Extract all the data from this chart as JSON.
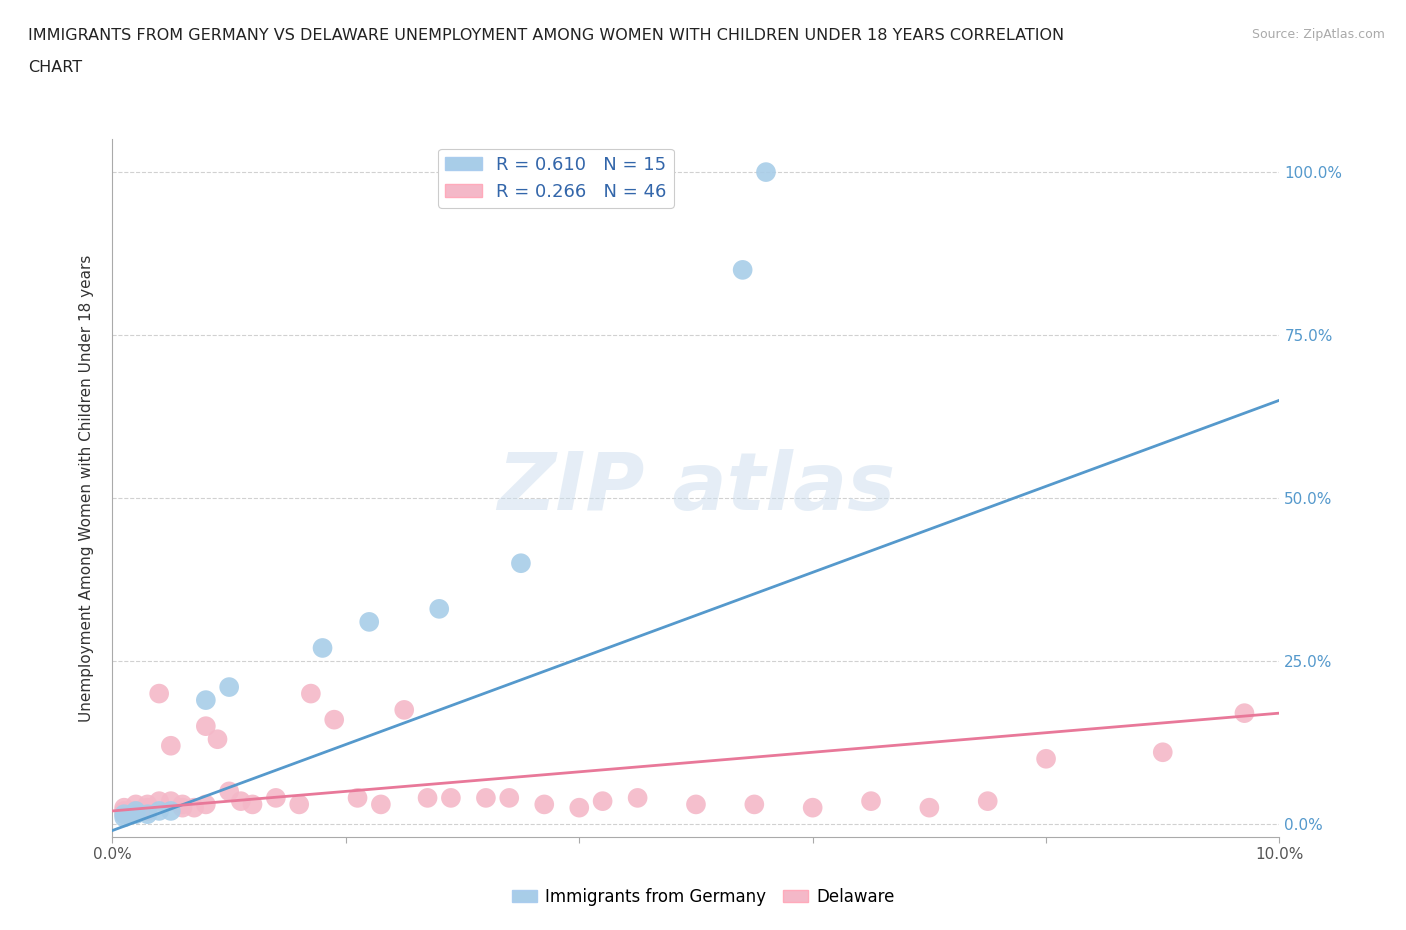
{
  "title_line1": "IMMIGRANTS FROM GERMANY VS DELAWARE UNEMPLOYMENT AMONG WOMEN WITH CHILDREN UNDER 18 YEARS CORRELATION",
  "title_line2": "CHART",
  "source": "Source: ZipAtlas.com",
  "ylabel": "Unemployment Among Women with Children Under 18 years",
  "xlim": [
    0.0,
    0.1
  ],
  "ylim": [
    -0.02,
    1.05
  ],
  "x_ticks": [
    0.0,
    0.02,
    0.04,
    0.06,
    0.08,
    0.1
  ],
  "x_tick_labels": [
    "0.0%",
    "",
    "",
    "",
    "",
    "10.0%"
  ],
  "y_ticks": [
    0.0,
    0.25,
    0.5,
    0.75,
    1.0
  ],
  "y_tick_labels": [
    "0.0%",
    "25.0%",
    "50.0%",
    "75.0%",
    "100.0%"
  ],
  "blue_color": "#a8cde8",
  "pink_color": "#f4b8c8",
  "blue_line_color": "#5599cc",
  "pink_line_color": "#e87899",
  "legend_R1": "R = 0.610",
  "legend_N1": "N = 15",
  "legend_R2": "R = 0.266",
  "legend_N2": "N = 46",
  "blue_scatter_x": [
    0.001,
    0.001,
    0.002,
    0.002,
    0.003,
    0.004,
    0.005,
    0.008,
    0.01,
    0.018,
    0.022,
    0.028,
    0.035,
    0.054,
    0.056
  ],
  "blue_scatter_y": [
    0.015,
    0.01,
    0.02,
    0.015,
    0.015,
    0.02,
    0.02,
    0.19,
    0.21,
    0.27,
    0.31,
    0.33,
    0.4,
    0.85,
    1.0
  ],
  "pink_scatter_x": [
    0.001,
    0.001,
    0.001,
    0.002,
    0.002,
    0.002,
    0.003,
    0.003,
    0.003,
    0.004,
    0.004,
    0.005,
    0.005,
    0.006,
    0.006,
    0.007,
    0.008,
    0.008,
    0.009,
    0.01,
    0.011,
    0.012,
    0.014,
    0.016,
    0.017,
    0.019,
    0.021,
    0.023,
    0.025,
    0.027,
    0.029,
    0.032,
    0.034,
    0.037,
    0.04,
    0.042,
    0.045,
    0.05,
    0.055,
    0.06,
    0.065,
    0.07,
    0.075,
    0.08,
    0.09,
    0.097
  ],
  "pink_scatter_y": [
    0.02,
    0.015,
    0.025,
    0.02,
    0.03,
    0.02,
    0.025,
    0.02,
    0.03,
    0.035,
    0.2,
    0.035,
    0.12,
    0.025,
    0.03,
    0.025,
    0.15,
    0.03,
    0.13,
    0.05,
    0.035,
    0.03,
    0.04,
    0.03,
    0.2,
    0.16,
    0.04,
    0.03,
    0.175,
    0.04,
    0.04,
    0.04,
    0.04,
    0.03,
    0.025,
    0.035,
    0.04,
    0.03,
    0.03,
    0.025,
    0.035,
    0.025,
    0.035,
    0.1,
    0.11,
    0.17
  ],
  "background_color": "#ffffff",
  "grid_color": "#cccccc",
  "blue_line_x0": 0.0,
  "blue_line_y0": -0.01,
  "blue_line_x1": 0.1,
  "blue_line_y1": 0.65,
  "pink_line_x0": 0.0,
  "pink_line_y0": 0.02,
  "pink_line_x1": 0.1,
  "pink_line_y1": 0.17
}
